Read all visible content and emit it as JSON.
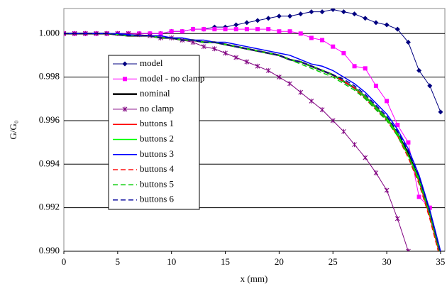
{
  "chart_data": {
    "type": "line",
    "x_label": "x  (mm)",
    "y_label": "G/G₀",
    "x": [
      0,
      1,
      2,
      3,
      4,
      5,
      6,
      7,
      8,
      9,
      10,
      11,
      12,
      13,
      14,
      15,
      16,
      17,
      18,
      19,
      20,
      21,
      22,
      23,
      24,
      25,
      26,
      27,
      28,
      29,
      30,
      31,
      32,
      33,
      34,
      35
    ],
    "xlim": [
      0,
      35.4
    ],
    "xticks": [
      0,
      5,
      10,
      15,
      20,
      25,
      30,
      35
    ],
    "ylim": [
      0.99,
      1.00115
    ],
    "yticks": [
      {
        "value": 0.99,
        "label": "0.990"
      },
      {
        "value": 0.992,
        "label": "0.992"
      },
      {
        "value": 0.994,
        "label": "0.994"
      },
      {
        "value": 0.996,
        "label": "0.996"
      },
      {
        "value": 0.998,
        "label": "0.998"
      },
      {
        "value": 1.0,
        "label": "1.000"
      }
    ],
    "grid": true,
    "legend": "upper-left",
    "series": [
      {
        "name": "model",
        "color": "#000080",
        "marker": "diamond",
        "dash": false,
        "width": 1,
        "values": [
          1.0,
          1.0,
          1.0,
          1.0,
          1.0,
          1.0,
          1.0,
          1.0,
          1.0,
          1.0,
          1.0001,
          1.0001,
          1.0002,
          1.0002,
          1.0003,
          1.0003,
          1.0004,
          1.0005,
          1.0006,
          1.0007,
          1.0008,
          1.0008,
          1.0009,
          1.001,
          1.001,
          1.0011,
          1.001,
          1.0009,
          1.0007,
          1.0005,
          1.0004,
          1.0002,
          0.9996,
          0.9983,
          0.9976,
          0.9964
        ]
      },
      {
        "name": "model - no clamp",
        "color": "#ff00ff",
        "marker": "square",
        "dash": false,
        "width": 1,
        "values": [
          1.0,
          1.0,
          1.0,
          1.0,
          1.0,
          1.0,
          1.0,
          1.0,
          1.0,
          1.0,
          1.0001,
          1.0001,
          1.0002,
          1.0002,
          1.0002,
          1.0002,
          1.0002,
          1.0002,
          1.0002,
          1.0002,
          1.0001,
          1.0001,
          1.0,
          0.9998,
          0.9997,
          0.9994,
          0.9991,
          0.9985,
          0.9984,
          0.9976,
          0.9969,
          0.9958,
          0.995,
          0.9925,
          0.992,
          null
        ]
      },
      {
        "name": "nominal",
        "color": "#000000",
        "marker": "none",
        "dash": false,
        "width": 2.5,
        "values": [
          1.0,
          1.0,
          1.0,
          1.0,
          1.0,
          0.99995,
          0.9999,
          0.9999,
          0.9999,
          0.9998,
          0.9998,
          0.9997,
          0.9997,
          0.9996,
          0.9996,
          0.9995,
          0.9994,
          0.9993,
          0.9992,
          0.9991,
          0.999,
          0.9988,
          0.9987,
          0.9985,
          0.9983,
          0.9981,
          0.9978,
          0.9975,
          0.9971,
          0.9966,
          0.9961,
          0.9954,
          0.9945,
          0.9933,
          0.9918,
          0.9899
        ]
      },
      {
        "name": "no clamp",
        "color": "#800080",
        "marker": "star",
        "dash": false,
        "width": 1,
        "values": [
          1.0,
          1.0,
          1.0,
          1.0,
          1.0,
          1.0,
          1.0,
          0.99995,
          0.9999,
          0.9998,
          0.9998,
          0.9997,
          0.9996,
          0.9994,
          0.9993,
          0.9991,
          0.9989,
          0.9987,
          0.9985,
          0.9983,
          0.998,
          0.9977,
          0.9973,
          0.9969,
          0.9965,
          0.996,
          0.9955,
          0.9949,
          0.9943,
          0.9936,
          0.9928,
          0.9915,
          0.99,
          null,
          null,
          null
        ]
      },
      {
        "name": "buttons 1",
        "color": "#ff0000",
        "marker": "none",
        "dash": false,
        "width": 1.5,
        "values": [
          1.0,
          1.0,
          1.0,
          1.0,
          1.0,
          0.99995,
          0.9999,
          0.9999,
          0.9999,
          0.9998,
          0.9998,
          0.9997,
          0.9997,
          0.9996,
          0.9996,
          0.9995,
          0.9994,
          0.9993,
          0.9992,
          0.9991,
          0.999,
          0.9988,
          0.9987,
          0.9985,
          0.9983,
          0.9981,
          0.9978,
          0.9975,
          0.9971,
          0.9966,
          0.9961,
          0.9953,
          0.9944,
          0.9932,
          0.9916,
          0.9897
        ]
      },
      {
        "name": "buttons 2",
        "color": "#00ff00",
        "marker": "none",
        "dash": false,
        "width": 1.5,
        "values": [
          1.0,
          1.0,
          1.0,
          1.0,
          1.0,
          0.99995,
          0.9999,
          0.9999,
          0.9999,
          0.9998,
          0.9998,
          0.9997,
          0.9997,
          0.9996,
          0.9996,
          0.9995,
          0.9994,
          0.9993,
          0.9992,
          0.9991,
          0.999,
          0.9988,
          0.9987,
          0.9985,
          0.9983,
          0.9981,
          0.9978,
          0.9975,
          0.9971,
          0.9966,
          0.9961,
          0.9954,
          0.9944,
          0.9933,
          0.9917,
          0.9898
        ]
      },
      {
        "name": "buttons 3",
        "color": "#0000ff",
        "marker": "none",
        "dash": false,
        "width": 1.5,
        "values": [
          1.0,
          1.0,
          1.0,
          1.0,
          1.0,
          1.0,
          0.99995,
          0.9999,
          0.9999,
          0.9999,
          0.9998,
          0.9998,
          0.9997,
          0.9997,
          0.9996,
          0.9996,
          0.9995,
          0.9994,
          0.9993,
          0.9992,
          0.9991,
          0.999,
          0.9988,
          0.9986,
          0.9985,
          0.9983,
          0.998,
          0.9977,
          0.9973,
          0.9968,
          0.9963,
          0.9956,
          0.9947,
          0.9935,
          0.9919,
          0.99
        ]
      },
      {
        "name": "buttons 4",
        "color": "#ff0000",
        "marker": "none",
        "dash": true,
        "width": 1.5,
        "values": [
          1.0,
          1.0,
          1.0,
          1.0,
          1.0,
          0.99995,
          0.9999,
          0.9999,
          0.9999,
          0.9998,
          0.9998,
          0.9997,
          0.9997,
          0.9996,
          0.9996,
          0.9995,
          0.9994,
          0.9993,
          0.9992,
          0.9991,
          0.999,
          0.9988,
          0.9987,
          0.9985,
          0.9983,
          0.9981,
          0.9978,
          0.9975,
          0.997,
          0.9965,
          0.996,
          0.9953,
          0.9943,
          0.9931,
          0.9915,
          0.9896
        ]
      },
      {
        "name": "buttons 5",
        "color": "#00cc00",
        "marker": "none",
        "dash": true,
        "width": 1.5,
        "values": [
          1.0,
          1.0,
          1.0,
          1.0,
          1.0,
          0.99995,
          0.9999,
          0.9999,
          0.9999,
          0.9998,
          0.9998,
          0.9997,
          0.9997,
          0.9996,
          0.9996,
          0.9995,
          0.9994,
          0.9993,
          0.9992,
          0.9991,
          0.999,
          0.9988,
          0.9986,
          0.9984,
          0.9982,
          0.998,
          0.9977,
          0.9974,
          0.997,
          0.9965,
          0.996,
          0.9953,
          0.9944,
          0.9932,
          0.9917,
          0.9898
        ]
      },
      {
        "name": "buttons 6",
        "color": "#000099",
        "marker": "none",
        "dash": true,
        "width": 1.5,
        "values": [
          1.0,
          1.0,
          1.0,
          1.0,
          1.0,
          0.99995,
          0.9999,
          0.9999,
          0.9999,
          0.9998,
          0.9998,
          0.9997,
          0.9997,
          0.9996,
          0.9996,
          0.9995,
          0.9994,
          0.9993,
          0.9992,
          0.9991,
          0.999,
          0.9988,
          0.9987,
          0.9985,
          0.9983,
          0.9981,
          0.9979,
          0.9976,
          0.9972,
          0.9967,
          0.9962,
          0.9955,
          0.9946,
          0.9934,
          0.9918,
          0.9899
        ]
      }
    ]
  }
}
